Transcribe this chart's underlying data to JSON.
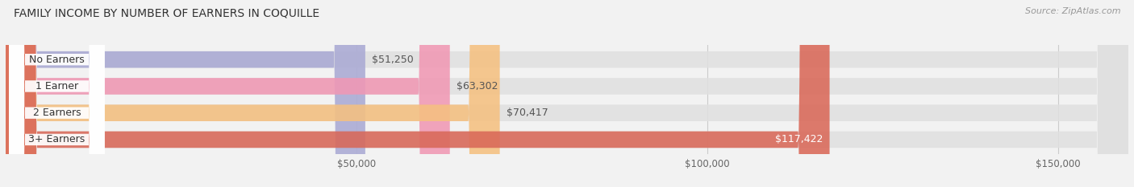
{
  "title": "FAMILY INCOME BY NUMBER OF EARNERS IN COQUILLE",
  "source": "Source: ZipAtlas.com",
  "categories": [
    "No Earners",
    "1 Earner",
    "2 Earners",
    "3+ Earners"
  ],
  "values": [
    51250,
    63302,
    70417,
    117422
  ],
  "bar_colors": [
    "#aaaad4",
    "#f098b4",
    "#f5c080",
    "#d96858"
  ],
  "value_labels": [
    "$51,250",
    "$63,302",
    "$70,417",
    "$117,422"
  ],
  "xmin": 0,
  "xmax": 160000,
  "xticks": [
    50000,
    100000,
    150000
  ],
  "xtick_labels": [
    "$50,000",
    "$100,000",
    "$150,000"
  ],
  "background_color": "#f2f2f2",
  "bar_bg_color": "#e0e0e0",
  "title_fontsize": 10,
  "label_fontsize": 9,
  "value_fontsize": 9,
  "source_fontsize": 8
}
